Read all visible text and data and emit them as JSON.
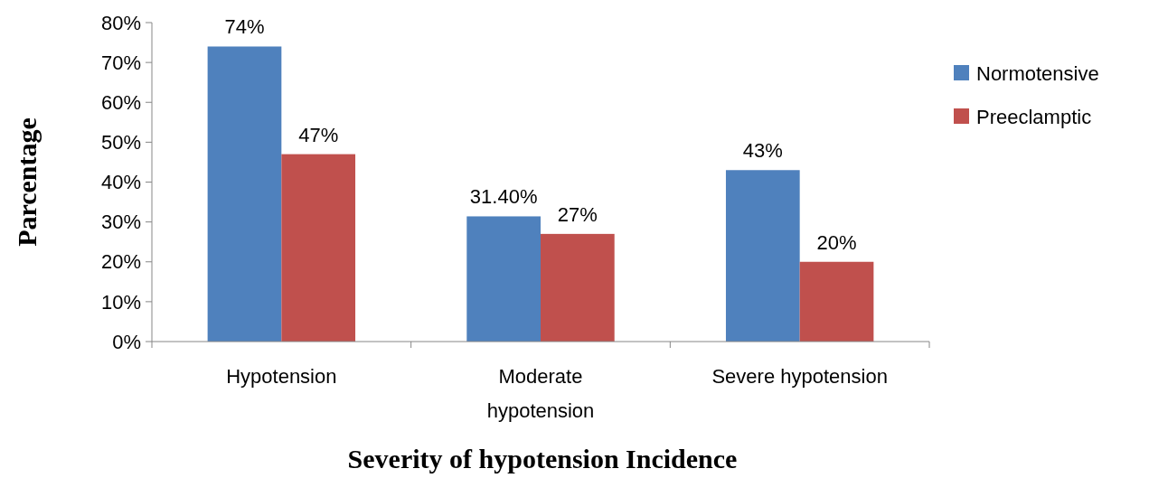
{
  "chart_data": {
    "type": "bar",
    "xlabel": "Severity of hypotension Incidence",
    "ylabel": "Parcentage",
    "categories": [
      "Hypotension",
      "Moderate hypotension",
      "Severe hypotension"
    ],
    "series": [
      {
        "name": "Normotensive",
        "color": "#4f81bd",
        "values": [
          74,
          31.4,
          43
        ],
        "value_labels": [
          "74%",
          "31.40%",
          "43%"
        ]
      },
      {
        "name": "Preeclamptic",
        "color": "#c0504d",
        "values": [
          47,
          27,
          20
        ],
        "value_labels": [
          "47%",
          "27%",
          "20%"
        ]
      }
    ],
    "ylim": [
      0,
      80
    ],
    "yticks": [
      {
        "value": 0,
        "label": "0%"
      },
      {
        "value": 10,
        "label": "10%"
      },
      {
        "value": 20,
        "label": "20%"
      },
      {
        "value": 30,
        "label": "30%"
      },
      {
        "value": 40,
        "label": "40%"
      },
      {
        "value": 50,
        "label": "50%"
      },
      {
        "value": 60,
        "label": "60%"
      },
      {
        "value": 70,
        "label": "70%"
      },
      {
        "value": 80,
        "label": "80%"
      }
    ],
    "legend": "right"
  }
}
